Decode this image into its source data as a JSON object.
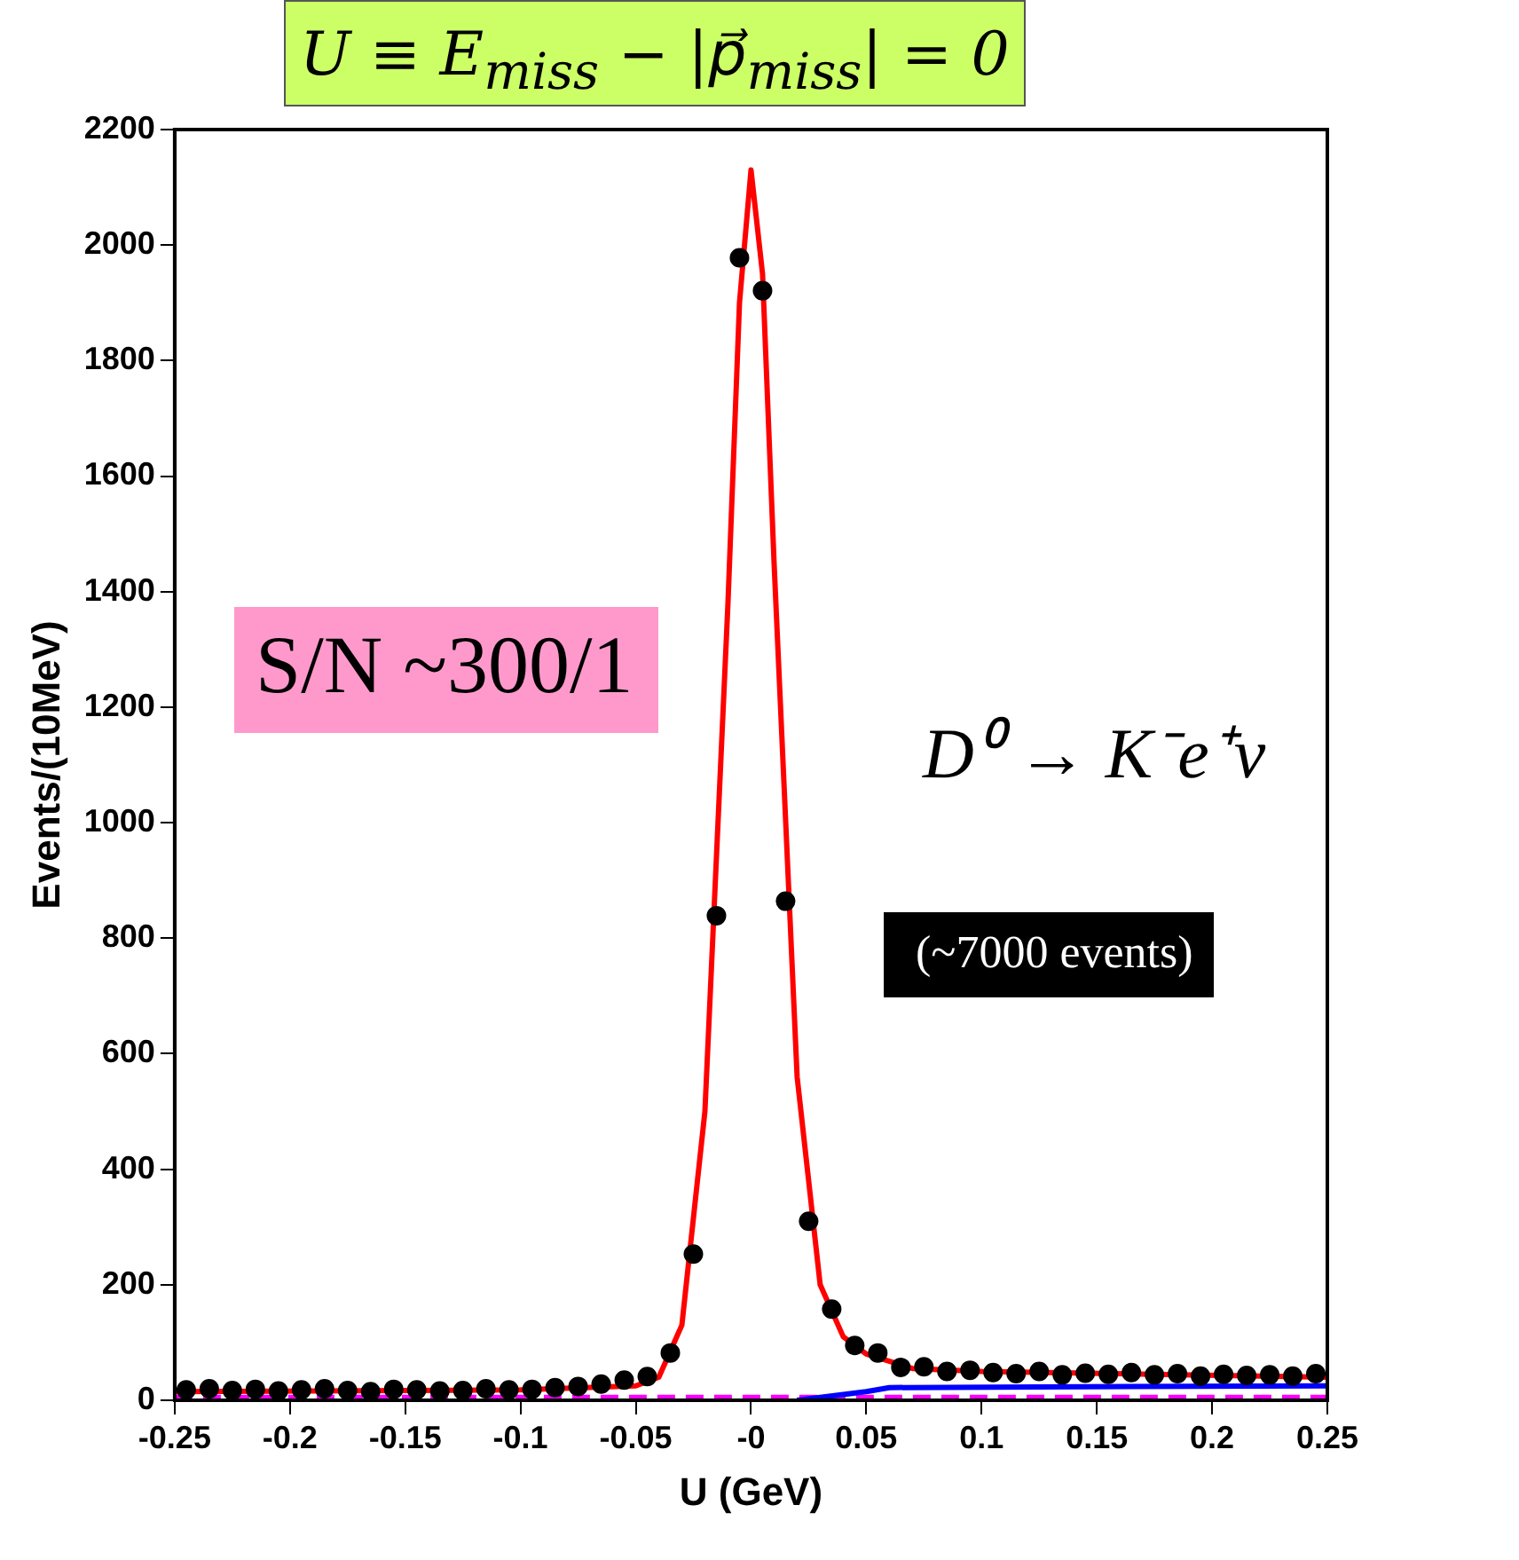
{
  "chart_data": {
    "type": "scatter",
    "title": "U ≡ E$_{miss}$ − |p⃗$_{miss}$| = 0",
    "xlabel": "U (GeV)",
    "ylabel": "Events/(10MeV)",
    "annotations": [
      "S/N ~300/1",
      "D⁰ → K⁻e⁺ν",
      "(~7000 events)"
    ],
    "xlim": [
      -0.25,
      0.25
    ],
    "xticks": [
      -0.25,
      -0.2,
      -0.15,
      -0.1,
      -0.05,
      {
        "value": 0,
        "label": "-0"
      },
      0.05,
      0.1,
      0.15,
      0.2,
      0.25
    ],
    "ylim": [
      0,
      2200
    ],
    "yticks": [
      0,
      200,
      400,
      600,
      800,
      1000,
      1200,
      1400,
      1600,
      1800,
      2000,
      2200
    ],
    "grid": false,
    "legend": false,
    "marker": "circle",
    "series": [
      {
        "color": "#000000",
        "x": [
          -0.245,
          -0.235,
          -0.225,
          -0.215,
          -0.205,
          -0.195,
          -0.185,
          -0.175,
          -0.165,
          -0.155,
          -0.145,
          -0.135,
          -0.125,
          -0.115,
          -0.105,
          -0.095,
          -0.085,
          -0.075,
          -0.065,
          -0.055,
          -0.045,
          -0.035,
          -0.025,
          -0.015,
          -0.005,
          0.005,
          0.015,
          0.025,
          0.035,
          0.045,
          0.055,
          0.065,
          0.075,
          0.085,
          0.095,
          0.105,
          0.115,
          0.125,
          0.135,
          0.145,
          0.155,
          0.165,
          0.175,
          0.185,
          0.195,
          0.205,
          0.215,
          0.225,
          0.235,
          0.245
        ],
        "values": [
          18,
          20,
          17,
          19,
          16,
          18,
          20,
          17,
          15,
          19,
          18,
          16,
          17,
          20,
          18,
          19,
          22,
          24,
          28,
          35,
          41,
          82,
          253,
          839,
          1978,
          1921,
          864,
          310,
          158,
          95,
          82,
          57,
          58,
          50,
          52,
          48,
          46,
          50,
          44,
          47,
          45,
          48,
          44,
          46,
          42,
          45,
          43,
          44,
          42,
          46
        ]
      },
      {
        "type": "line",
        "marker": "none",
        "color": "#ff0000",
        "x": [
          -0.25,
          -0.1,
          -0.05,
          -0.04,
          -0.03,
          -0.02,
          -0.01,
          -0.005,
          0,
          0.005,
          0.01,
          0.02,
          0.03,
          0.04,
          0.05,
          0.07,
          0.1,
          0.25
        ],
        "values": [
          15,
          18,
          25,
          40,
          130,
          500,
          1380,
          1900,
          2130,
          1950,
          1450,
          560,
          200,
          110,
          80,
          55,
          50,
          40
        ]
      },
      {
        "type": "line",
        "marker": "none",
        "color": "#0000ff",
        "x": [
          0.02,
          0.03,
          0.04,
          0.05,
          0.06,
          0.25
        ],
        "values": [
          0,
          5,
          10,
          15,
          22,
          25
        ]
      },
      {
        "type": "line",
        "marker": "none",
        "color": "#ff00ff",
        "line_style": "dashed",
        "x": [
          -0.25,
          0.25
        ],
        "values": [
          5,
          5
        ]
      }
    ]
  }
}
